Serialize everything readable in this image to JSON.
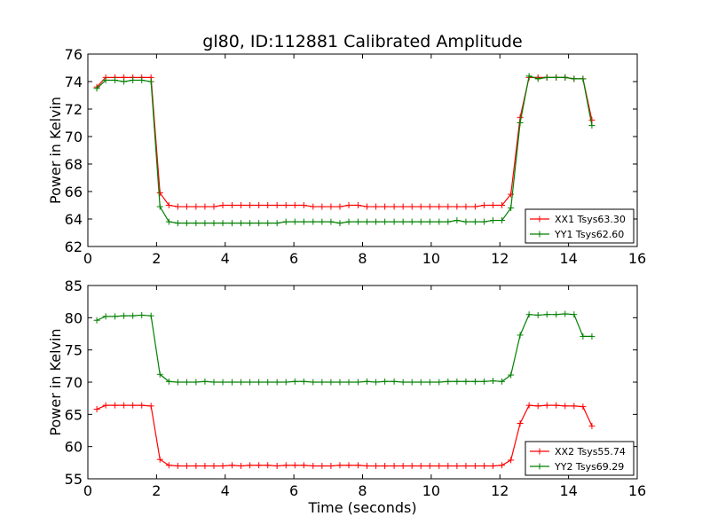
{
  "chart_data": [
    {
      "type": "line",
      "title": "gl80, ID:112881 Calibrated Amplitude",
      "xlabel": "",
      "ylabel": "Power in Kelvin",
      "xlim": [
        0,
        16
      ],
      "ylim": [
        62,
        76
      ],
      "xticks": [
        "0",
        "2",
        "4",
        "6",
        "8",
        "10",
        "12",
        "14",
        "16"
      ],
      "yticks": [
        "62",
        "64",
        "66",
        "68",
        "70",
        "72",
        "74",
        "76"
      ],
      "legend_position": "lower-right",
      "x": [
        0.26,
        0.52,
        0.79,
        1.05,
        1.31,
        1.57,
        1.84,
        2.1,
        2.36,
        2.62,
        2.88,
        3.15,
        3.41,
        3.67,
        3.93,
        4.2,
        4.46,
        4.72,
        4.98,
        5.24,
        5.51,
        5.77,
        6.03,
        6.29,
        6.56,
        6.82,
        7.08,
        7.34,
        7.6,
        7.87,
        8.13,
        8.39,
        8.65,
        8.92,
        9.18,
        9.44,
        9.7,
        9.96,
        10.23,
        10.49,
        10.75,
        11.01,
        11.28,
        11.54,
        11.8,
        12.06,
        12.32,
        12.59,
        12.85,
        13.11,
        13.37,
        13.64,
        13.9,
        14.16,
        14.42,
        14.68
      ],
      "series": [
        {
          "name": "XX1 Tsys63.30",
          "color": "#ff0000",
          "values": [
            73.6,
            74.3,
            74.3,
            74.3,
            74.3,
            74.3,
            74.3,
            65.9,
            65.0,
            64.9,
            64.9,
            64.9,
            64.9,
            64.9,
            65.0,
            65.0,
            65.0,
            65.0,
            65.0,
            65.0,
            65.0,
            65.0,
            65.0,
            65.0,
            64.9,
            64.9,
            64.9,
            64.9,
            65.0,
            65.0,
            64.9,
            64.9,
            64.9,
            64.9,
            64.9,
            64.9,
            64.9,
            64.9,
            64.9,
            64.9,
            64.9,
            64.9,
            64.9,
            65.0,
            65.0,
            65.0,
            65.8,
            71.4,
            74.3,
            74.3,
            74.3,
            74.3,
            74.3,
            74.2,
            74.2,
            71.2
          ]
        },
        {
          "name": "YY1 Tsys62.60",
          "color": "#008000",
          "values": [
            73.5,
            74.1,
            74.1,
            74.0,
            74.1,
            74.1,
            74.0,
            64.9,
            63.8,
            63.7,
            63.7,
            63.7,
            63.7,
            63.7,
            63.7,
            63.7,
            63.7,
            63.7,
            63.7,
            63.7,
            63.7,
            63.8,
            63.8,
            63.8,
            63.8,
            63.8,
            63.8,
            63.7,
            63.8,
            63.8,
            63.8,
            63.8,
            63.8,
            63.8,
            63.8,
            63.8,
            63.8,
            63.8,
            63.8,
            63.8,
            63.9,
            63.8,
            63.8,
            63.8,
            63.9,
            63.9,
            64.8,
            71.0,
            74.4,
            74.2,
            74.3,
            74.3,
            74.3,
            74.2,
            74.2,
            70.8
          ]
        }
      ]
    },
    {
      "type": "line",
      "title": "",
      "xlabel": "Time (seconds)",
      "ylabel": "Power in Kelvin",
      "xlim": [
        0,
        16
      ],
      "ylim": [
        55,
        85
      ],
      "xticks": [
        "0",
        "2",
        "4",
        "6",
        "8",
        "10",
        "12",
        "14",
        "16"
      ],
      "yticks": [
        "55",
        "60",
        "65",
        "70",
        "75",
        "80",
        "85"
      ],
      "legend_position": "lower-right",
      "x": [
        0.26,
        0.52,
        0.79,
        1.05,
        1.31,
        1.57,
        1.84,
        2.1,
        2.36,
        2.62,
        2.88,
        3.15,
        3.41,
        3.67,
        3.93,
        4.2,
        4.46,
        4.72,
        4.98,
        5.24,
        5.51,
        5.77,
        6.03,
        6.29,
        6.56,
        6.82,
        7.08,
        7.34,
        7.6,
        7.87,
        8.13,
        8.39,
        8.65,
        8.92,
        9.18,
        9.44,
        9.7,
        9.96,
        10.23,
        10.49,
        10.75,
        11.01,
        11.28,
        11.54,
        11.8,
        12.06,
        12.32,
        12.59,
        12.85,
        13.11,
        13.37,
        13.64,
        13.9,
        14.16,
        14.42,
        14.68
      ],
      "series": [
        {
          "name": "XX2 Tsys55.74",
          "color": "#ff0000",
          "values": [
            65.8,
            66.4,
            66.4,
            66.4,
            66.4,
            66.4,
            66.3,
            58.0,
            57.1,
            57.0,
            57.0,
            57.0,
            57.0,
            57.0,
            57.0,
            57.1,
            57.0,
            57.1,
            57.1,
            57.1,
            57.0,
            57.1,
            57.1,
            57.1,
            57.0,
            57.0,
            57.0,
            57.1,
            57.1,
            57.1,
            57.0,
            57.0,
            57.0,
            57.0,
            57.0,
            57.0,
            57.0,
            57.0,
            57.0,
            57.0,
            57.0,
            57.0,
            57.0,
            57.0,
            57.0,
            57.1,
            57.9,
            63.6,
            66.4,
            66.3,
            66.4,
            66.4,
            66.3,
            66.3,
            66.2,
            63.2
          ]
        },
        {
          "name": "YY2 Tsys69.29",
          "color": "#008000",
          "values": [
            79.6,
            80.2,
            80.2,
            80.3,
            80.3,
            80.4,
            80.3,
            71.2,
            70.1,
            70.0,
            70.0,
            70.0,
            70.1,
            70.0,
            70.0,
            70.0,
            70.0,
            70.0,
            70.0,
            70.0,
            70.0,
            70.0,
            70.1,
            70.1,
            70.0,
            70.0,
            70.0,
            70.0,
            70.0,
            70.0,
            70.1,
            70.0,
            70.1,
            70.1,
            70.0,
            70.0,
            70.0,
            70.0,
            70.0,
            70.1,
            70.1,
            70.1,
            70.1,
            70.1,
            70.2,
            70.1,
            71.1,
            77.3,
            80.5,
            80.4,
            80.5,
            80.5,
            80.6,
            80.5,
            77.1,
            77.1
          ]
        }
      ]
    }
  ]
}
